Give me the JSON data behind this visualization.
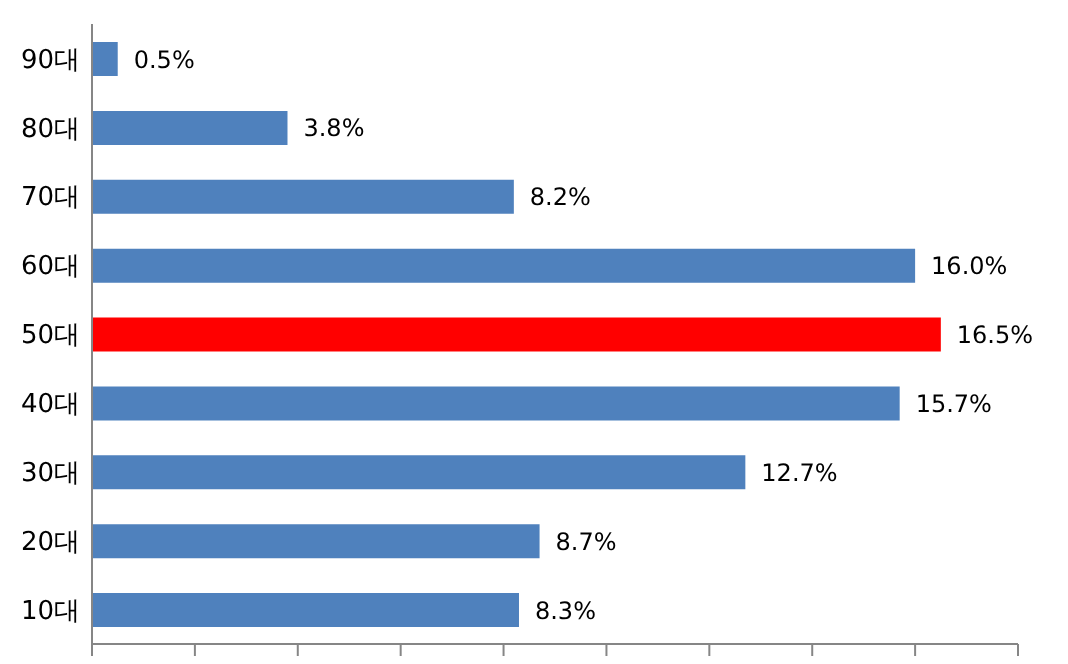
{
  "chart_data": {
    "type": "bar",
    "orientation": "horizontal",
    "categories": [
      "90대",
      "80대",
      "70대",
      "60대",
      "50대",
      "40대",
      "30대",
      "20대",
      "10대"
    ],
    "values": [
      0.5,
      3.8,
      8.2,
      16.0,
      16.5,
      15.7,
      12.7,
      8.7,
      8.3
    ],
    "value_labels": [
      "0.5%",
      "3.8%",
      "8.2%",
      "16.0%",
      "16.5%",
      "15.7%",
      "12.7%",
      "8.7%",
      "8.3%"
    ],
    "colors": [
      "#4f81bd",
      "#4f81bd",
      "#4f81bd",
      "#4f81bd",
      "#ff0000",
      "#4f81bd",
      "#4f81bd",
      "#4f81bd",
      "#4f81bd"
    ],
    "tick_labels": "y",
    "grid": false,
    "legend": false
  }
}
